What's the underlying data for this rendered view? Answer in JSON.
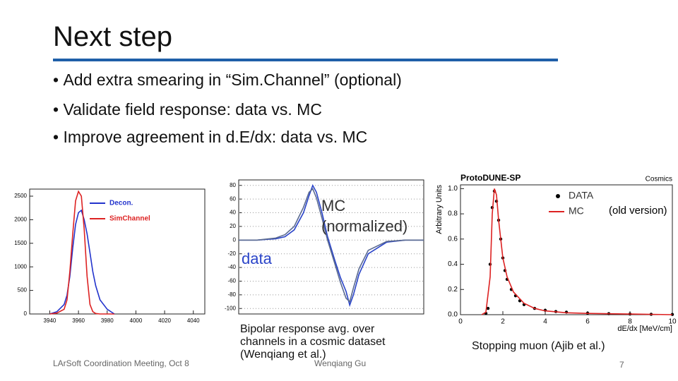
{
  "slide": {
    "title": "Next step",
    "bullets": [
      "Add extra smearing in “Sim.Channel” (optional)",
      "Validate field response: data vs. MC",
      "Improve agreement in d.E/dx: data vs. MC"
    ],
    "caption_left": "Bipolar response avg. over channels in a cosmic dataset (Wenqiang et al.)",
    "caption_right": "Stopping muon (Ajib et al.)",
    "footer": "LArSoft Coordination Meeting, Oct 8",
    "footer_center": "Wenqiang Gu",
    "page_number": "7"
  },
  "chart_data": [
    {
      "type": "line",
      "x": [
        3940,
        3945,
        3950,
        3952,
        3954,
        3956,
        3958,
        3960,
        3962,
        3964,
        3966,
        3968,
        3970,
        3972,
        3975,
        3980,
        3985
      ],
      "series": [
        {
          "name": "Decon.",
          "color": "#2233cc",
          "values": [
            0,
            50,
            200,
            400,
            800,
            1400,
            1900,
            2150,
            2200,
            2000,
            1700,
            1300,
            900,
            600,
            300,
            100,
            0
          ]
        },
        {
          "name": "SimChannel",
          "color": "#dd2222",
          "values": [
            0,
            20,
            100,
            300,
            900,
            1700,
            2400,
            2600,
            2500,
            1800,
            800,
            200,
            50,
            10,
            0,
            0,
            0
          ]
        }
      ],
      "xlim": [
        3926,
        4048
      ],
      "xticks": [
        3940,
        3960,
        3980,
        4000,
        4020,
        4040
      ],
      "ylim": [
        0,
        2650
      ],
      "yticks": [
        0,
        500,
        1000,
        1500,
        2000,
        2500
      ]
    },
    {
      "type": "line",
      "annotations": [
        "MC",
        "(normalized)",
        "data"
      ],
      "x": [
        0,
        10,
        20,
        25,
        30,
        35,
        38,
        40,
        42,
        45,
        48,
        52,
        55,
        58,
        60,
        62,
        65,
        70,
        80,
        90,
        100
      ],
      "series": [
        {
          "color": "#2a44c8",
          "values": [
            0,
            0,
            2,
            5,
            15,
            40,
            65,
            80,
            70,
            40,
            5,
            -30,
            -55,
            -75,
            -95,
            -80,
            -50,
            -20,
            -3,
            0,
            0
          ]
        },
        {
          "color": "#5a6a90",
          "values": [
            0,
            0,
            3,
            8,
            20,
            48,
            70,
            75,
            62,
            32,
            0,
            -35,
            -62,
            -85,
            -90,
            -70,
            -42,
            -15,
            -2,
            0,
            0
          ]
        }
      ],
      "xlim": [
        0,
        100
      ],
      "ylim": [
        -108,
        88
      ],
      "yticks": [
        -100,
        -80,
        -60,
        -40,
        -20,
        0,
        20,
        40,
        60,
        80
      ],
      "grid": true
    },
    {
      "type": "line",
      "title": "ProtoDUNE-SP",
      "subtitle": "Cosmics",
      "x_label": "dE/dx [MeV/cm]",
      "y_label": "Arbitrary Units",
      "annotations": [
        "(old version)"
      ],
      "series": [
        {
          "name": "DATA",
          "color": "#000000",
          "marker": "dot",
          "x": [
            1.2,
            1.3,
            1.4,
            1.5,
            1.6,
            1.7,
            1.8,
            1.9,
            2,
            2.1,
            2.2,
            2.4,
            2.6,
            2.8,
            3,
            3.5,
            4,
            4.5,
            5,
            6,
            7,
            8,
            9,
            10
          ],
          "values": [
            0.01,
            0.05,
            0.4,
            0.85,
            0.98,
            0.9,
            0.75,
            0.6,
            0.45,
            0.35,
            0.28,
            0.2,
            0.15,
            0.11,
            0.08,
            0.05,
            0.035,
            0.025,
            0.02,
            0.012,
            0.008,
            0.005,
            0.003,
            0.002
          ]
        },
        {
          "name": "MC",
          "color": "#dd2222",
          "x": [
            1,
            1.2,
            1.4,
            1.5,
            1.6,
            1.7,
            1.8,
            2,
            2.2,
            2.5,
            3,
            3.5,
            4,
            5,
            6,
            8,
            10
          ],
          "values": [
            0,
            0.02,
            0.3,
            0.8,
            1.0,
            0.95,
            0.75,
            0.45,
            0.3,
            0.18,
            0.09,
            0.05,
            0.03,
            0.015,
            0.01,
            0.005,
            0
          ]
        }
      ],
      "xlim": [
        0,
        10
      ],
      "xticks": [
        0,
        2,
        4,
        6,
        8,
        10
      ],
      "ylim": [
        0,
        1.03
      ],
      "yticks": [
        {
          "value": 0,
          "label": "0.0"
        },
        {
          "value": 0.2,
          "label": "0.2"
        },
        {
          "value": 0.4,
          "label": "0.4"
        },
        {
          "value": 0.6,
          "label": "0.6"
        },
        {
          "value": 0.8,
          "label": "0.8"
        },
        {
          "value": 1,
          "label": "1.0"
        }
      ]
    }
  ]
}
